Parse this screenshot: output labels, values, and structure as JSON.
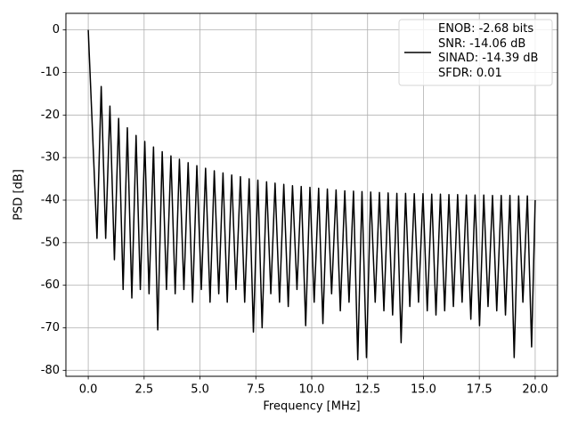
{
  "chart_data": {
    "type": "line",
    "xlabel": "Frequency [MHz]",
    "ylabel": "PSD [dB]",
    "xlim": [
      -1.0,
      21.0
    ],
    "ylim": [
      -81.4,
      3.9
    ],
    "xticks": [
      {
        "value": 0,
        "label": "0.0"
      },
      2.5,
      {
        "value": 5,
        "label": "5.0"
      },
      7.5,
      {
        "value": 10,
        "label": "10.0"
      },
      12.5,
      {
        "value": 15,
        "label": "15.0"
      },
      17.5,
      {
        "value": 20,
        "label": "20.0"
      }
    ],
    "yticks": [
      0,
      -10,
      -20,
      -30,
      -40,
      -50,
      -60,
      -70,
      -80
    ],
    "grid": true,
    "legend": "upper right",
    "x": [
      0,
      0.39,
      0.58,
      0.78,
      0.97,
      1.17,
      1.36,
      1.56,
      1.75,
      1.95,
      2.14,
      2.33,
      2.53,
      2.72,
      2.92,
      3.11,
      3.31,
      3.5,
      3.7,
      3.89,
      4.08,
      4.28,
      4.47,
      4.67,
      4.86,
      5.06,
      5.25,
      5.45,
      5.64,
      5.84,
      6.03,
      6.22,
      6.42,
      6.61,
      6.81,
      7.0,
      7.2,
      7.39,
      7.59,
      7.78,
      7.98,
      8.17,
      8.36,
      8.56,
      8.75,
      8.95,
      9.14,
      9.34,
      9.53,
      9.73,
      9.92,
      10.11,
      10.31,
      10.5,
      10.7,
      10.89,
      11.09,
      11.28,
      11.48,
      11.67,
      11.87,
      12.06,
      12.25,
      12.45,
      12.64,
      12.84,
      13.03,
      13.23,
      13.42,
      13.62,
      13.81,
      14.0,
      14.2,
      14.39,
      14.59,
      14.78,
      14.98,
      15.17,
      15.37,
      15.56,
      15.76,
      15.95,
      16.14,
      16.34,
      16.53,
      16.73,
      16.92,
      17.12,
      17.31,
      17.51,
      17.7,
      17.89,
      18.09,
      18.28,
      18.48,
      18.67,
      18.87,
      19.06,
      19.26,
      19.45,
      19.65,
      19.84,
      20.0
    ],
    "series": [
      {
        "name": "ENOB: -2.68 bits\nSNR: -14.06 dB\nSINAD: -14.39 dB\nSFDR: 0.01",
        "color": "#000000",
        "values": [
          0,
          -49,
          -13.3,
          -49,
          -17.9,
          -54,
          -20.8,
          -61,
          -23,
          -63,
          -24.8,
          -61,
          -26.2,
          -62,
          -27.5,
          -70.5,
          -28.6,
          -61,
          -29.6,
          -62,
          -30.4,
          -61,
          -31.2,
          -64,
          -31.9,
          -61,
          -32.5,
          -64,
          -33.1,
          -62,
          -33.6,
          -64,
          -34.1,
          -61,
          -34.5,
          -64,
          -35,
          -71,
          -35.3,
          -70,
          -35.7,
          -62,
          -36,
          -64,
          -36.3,
          -65,
          -36.6,
          -61,
          -36.8,
          -69.5,
          -37,
          -64,
          -37.2,
          -69,
          -37.4,
          -62,
          -37.6,
          -66,
          -37.8,
          -64,
          -37.9,
          -77.5,
          -38,
          -77,
          -38.1,
          -64,
          -38.2,
          -66,
          -38.3,
          -67,
          -38.4,
          -73.5,
          -38.4,
          -65,
          -38.5,
          -64,
          -38.5,
          -66,
          -38.6,
          -67,
          -38.6,
          -66,
          -38.7,
          -65,
          -38.7,
          -64,
          -38.8,
          -68,
          -38.8,
          -69.5,
          -38.8,
          -65,
          -38.9,
          -66,
          -38.9,
          -67,
          -38.9,
          -77,
          -39,
          -64,
          -39,
          -74.5,
          -40
        ]
      }
    ]
  }
}
